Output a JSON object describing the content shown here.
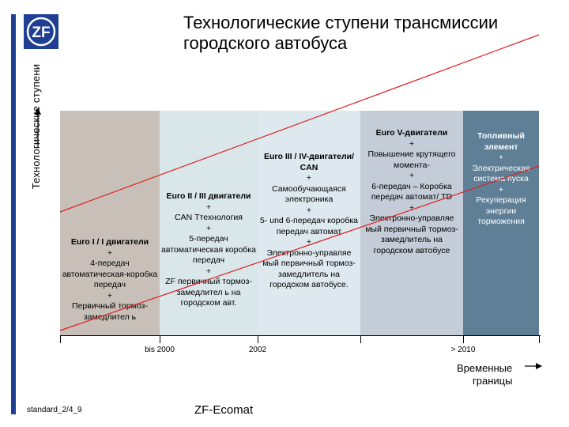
{
  "colors": {
    "brand_blue": "#1f3f93",
    "stage1_bg": "#c8c0b8",
    "stage2_bg": "#d9e6ea",
    "stage3_bg": "#dde9ee",
    "stage4_bg": "#c4ccd7",
    "stage5_bg": "#5f7f96",
    "trend_line": "#e02020"
  },
  "logo": {
    "text": "ZF"
  },
  "title": "Технологические ступени трансмиссии\nгородского автобуса",
  "axis_y_label": "Технологические ступени",
  "stages": [
    {
      "heading": "Euro I / I двигатели",
      "lines": [
        "+",
        "4-передач автоматическая-коробка передач",
        "+",
        "Первичный тормоз-замедлител ь"
      ]
    },
    {
      "heading": "Euro II / III двигатели",
      "lines": [
        "+",
        "CAN Ттехнология",
        "+",
        "5-передач автоматическая коробка передач",
        "+",
        "ZF первичный тормоз-замедлител ь на городском авт."
      ]
    },
    {
      "heading": "Euro III / IV-двигатели/ CAN",
      "lines": [
        "+",
        "Самообучающаяся электроника",
        "+",
        "5- und 6-передач коробка передач автомат",
        "+",
        "Электронно-управляе мый первичный тормоз-замедлитель на городском автобусе."
      ]
    },
    {
      "heading": "Euro V-двигатели",
      "lines": [
        "+",
        "Повышение крутящего момента-",
        "+",
        "6-передач – Коробка передач автомат/ TD",
        "+",
        "Электронно-управляе мый первичный тормоз-замедлитель на городском автобусе"
      ]
    },
    {
      "heading": "Топливный элемент",
      "lines": [
        "+",
        "Электрическая система пуска",
        "+",
        "Рекуперация энергии торможения"
      ]
    }
  ],
  "axis_ticks": [
    "bis 2000",
    "2002",
    "> 2010"
  ],
  "time_axis_label_line1": "Временные",
  "time_axis_label_line2": "границы",
  "footer_left": "standard_2/4_9",
  "footer_center": "ZF-Ecomat"
}
